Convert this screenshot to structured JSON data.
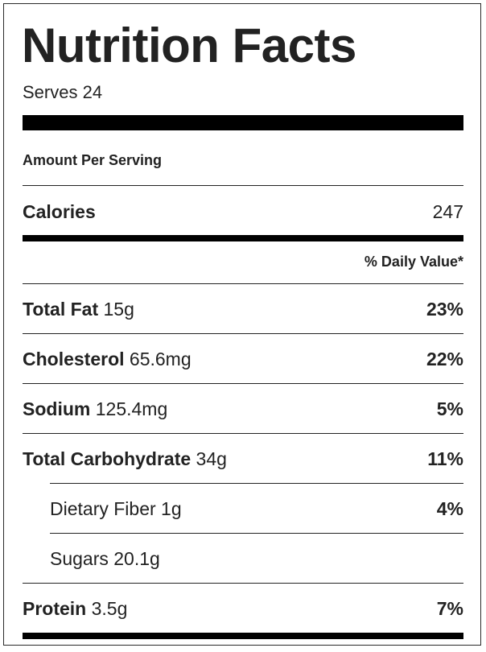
{
  "title": "Nutrition Facts",
  "serves": "Serves 24",
  "amount_per_serving": "Amount Per Serving",
  "calories": {
    "label": "Calories",
    "value": "247"
  },
  "daily_value_header": "% Daily Value*",
  "nutrients": [
    {
      "name": "Total Fat",
      "amount": "15g",
      "percent": "23%"
    },
    {
      "name": "Cholesterol",
      "amount": "65.6mg",
      "percent": "22%"
    },
    {
      "name": "Sodium",
      "amount": "125.4mg",
      "percent": "5%"
    },
    {
      "name": "Total Carbohydrate",
      "amount": "34g",
      "percent": "11%"
    },
    {
      "name": "Dietary Fiber",
      "amount": "1g",
      "percent": "4%"
    },
    {
      "name": "Sugars",
      "amount": "20.1g",
      "percent": ""
    },
    {
      "name": "Protein",
      "amount": "3.5g",
      "percent": "7%"
    }
  ]
}
